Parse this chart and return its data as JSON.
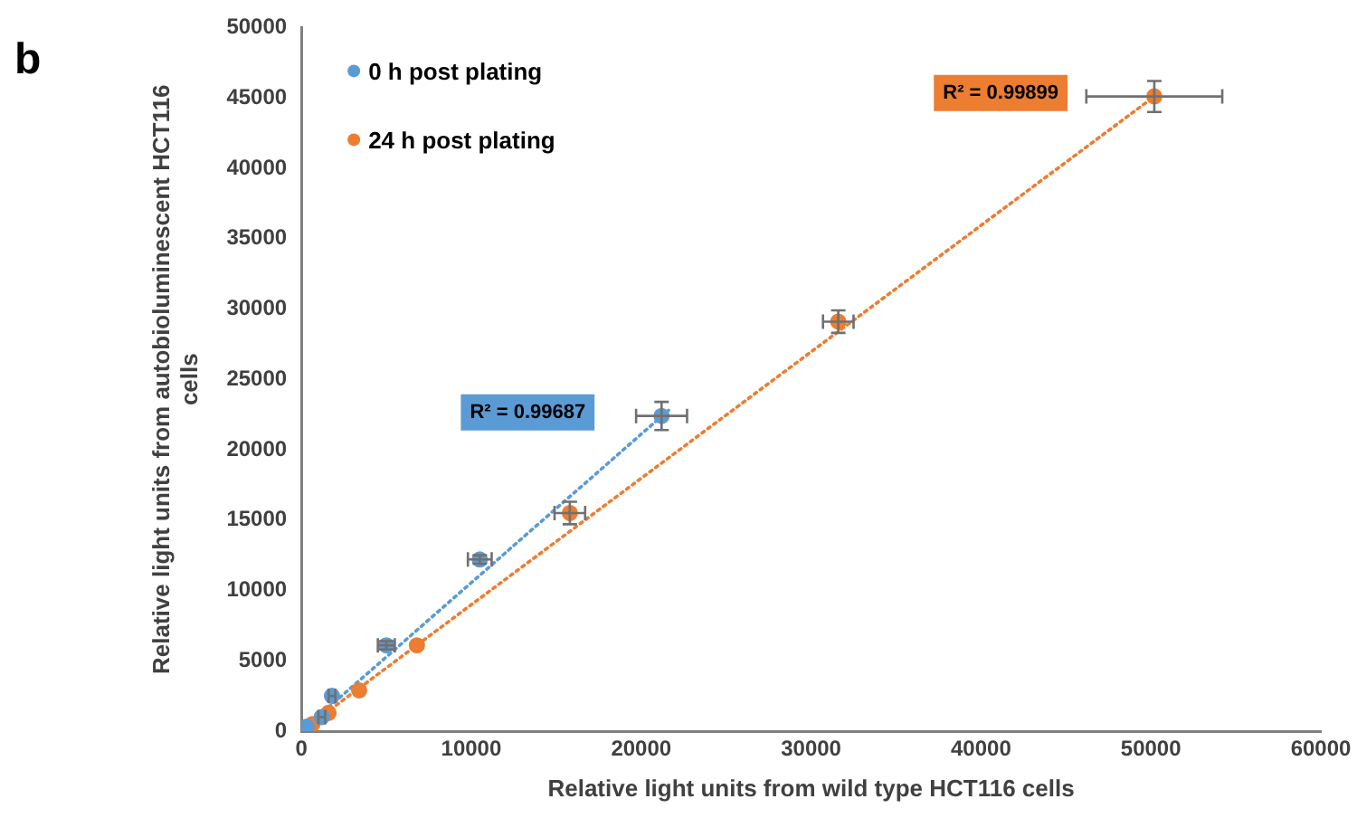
{
  "chart_data": {
    "type": "scatter",
    "xlabel": "Relative light units from wild type HCT116 cells",
    "ylabel": "Relative light units from autobioluminescent HCT116 cells",
    "xlim": [
      0,
      60000
    ],
    "xticks": [
      0,
      10000,
      20000,
      30000,
      40000,
      50000,
      60000
    ],
    "ylim": [
      0,
      50000
    ],
    "yticks": [
      0,
      5000,
      10000,
      15000,
      20000,
      25000,
      30000,
      35000,
      40000,
      45000,
      50000
    ],
    "grid": false,
    "legend": "top left",
    "marker": "circle",
    "series": [
      {
        "name": "0 h post plating",
        "color": "#5b9bd5",
        "x": [
          300,
          1200,
          1800,
          5000,
          10500,
          21200
        ],
        "values": [
          300,
          1000,
          2500,
          6100,
          12200,
          22400
        ],
        "xerrors": [
          null,
          200,
          200,
          500,
          700,
          1500
        ],
        "errors": [
          null,
          null,
          null,
          300,
          300,
          1000
        ]
      },
      {
        "name": "24 h post plating",
        "color": "#ed7d31",
        "x": [
          650,
          1600,
          3400,
          6800,
          15800,
          31600,
          50200
        ],
        "values": [
          500,
          1300,
          2900,
          6100,
          15500,
          29100,
          45100
        ],
        "xerrors": [
          null,
          null,
          null,
          null,
          900,
          900,
          4000
        ],
        "errors": [
          null,
          null,
          null,
          null,
          800,
          800,
          1100
        ]
      },
      {
        "type": "line",
        "color": "#5b9bd5",
        "line_style": "dotted",
        "marker": "none",
        "x": [
          0,
          21800
        ],
        "values": [
          0,
          23000
        ]
      },
      {
        "type": "line",
        "color": "#ed7d31",
        "line_style": "dotted",
        "marker": "none",
        "x": [
          0,
          50200
        ],
        "values": [
          0,
          45100
        ]
      }
    ],
    "annotations": [
      "b",
      "R² = 0.99687",
      "R² = 0.99899"
    ]
  }
}
